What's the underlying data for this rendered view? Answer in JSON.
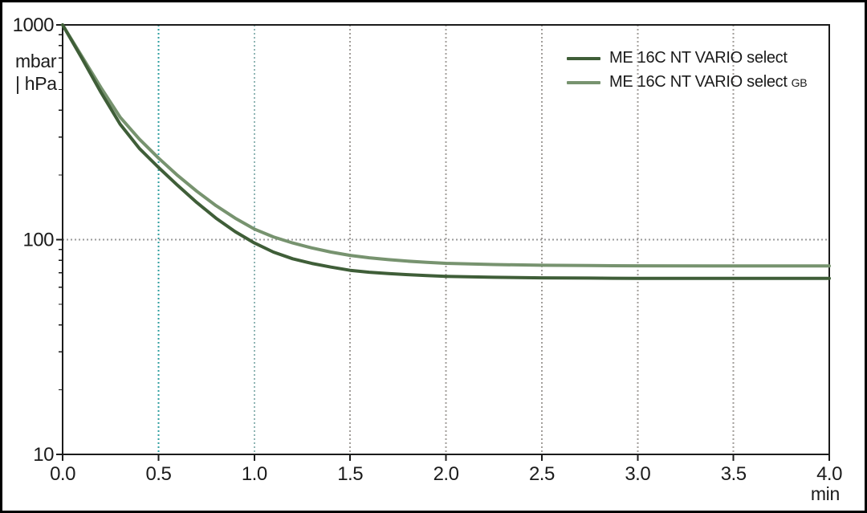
{
  "colors": {
    "background": "#ffffff",
    "border": "#000000",
    "axis": "#1b1b1b",
    "text": "#1b1b1b",
    "series_dark_green": "#3f5e38",
    "series_light_green": "#77936f",
    "grid_teal_primary": "#2f9fa0",
    "grid_teal_secondary": "#8fb5b4",
    "grid_gray": "#a29e9a",
    "grid_horizontal_gray": "#9a9a9a"
  },
  "chart_data": {
    "type": "line",
    "title": "",
    "y_unit_label_line1": "mbar",
    "y_unit_label_line2": "| hPa",
    "x_unit_label": "min",
    "y_scale": "log",
    "xlim": [
      0,
      4
    ],
    "ylim": [
      10,
      1000
    ],
    "x_ticks": [
      0,
      0.5,
      1,
      1.5,
      2,
      2.5,
      3,
      3.5,
      4
    ],
    "x_tick_labels": [
      "0.0",
      "0.5",
      "1.0",
      "1.5",
      "2.0",
      "2.5",
      "3.0",
      "3.5",
      "4.0"
    ],
    "y_ticks": [
      1000,
      100,
      10
    ],
    "y_tick_labels": [
      "1000",
      "100",
      "10"
    ],
    "y_minor_ticks": [
      900,
      800,
      700,
      600,
      500,
      400,
      300,
      200,
      90,
      80,
      70,
      60,
      50,
      40,
      30,
      20
    ],
    "grid": {
      "style": "dotted",
      "vertical": [
        {
          "x": 0.5,
          "color": "#2f9fa0"
        },
        {
          "x": 1.0,
          "color": "#8fb5b4"
        },
        {
          "x": 1.5,
          "color": "#a29e9a"
        },
        {
          "x": 2.0,
          "color": "#a29e9a"
        },
        {
          "x": 2.5,
          "color": "#a29e9a"
        },
        {
          "x": 3.0,
          "color": "#a29e9a"
        },
        {
          "x": 3.5,
          "color": "#a29e9a"
        }
      ],
      "horizontal": [
        {
          "y": 100,
          "color": "#9a9a9a"
        }
      ]
    },
    "legend_position": "top-right",
    "legend": {
      "entries": [
        {
          "label": "ME 16C NT VARIO select",
          "suffix": "",
          "color": "#3f5e38"
        },
        {
          "label": "ME 16C NT VARIO select",
          "suffix": "GB",
          "color": "#77936f"
        }
      ]
    },
    "series": [
      {
        "name": "ME 16C NT VARIO select",
        "color": "#3f5e38",
        "ultimate_pressure_mbar": 66,
        "points": [
          [
            0,
            1000
          ],
          [
            0.1,
            700
          ],
          [
            0.2,
            485
          ],
          [
            0.3,
            345
          ],
          [
            0.4,
            266
          ],
          [
            0.5,
            217
          ],
          [
            0.6,
            179
          ],
          [
            0.7,
            149
          ],
          [
            0.8,
            126
          ],
          [
            0.9,
            109
          ],
          [
            1.0,
            96.5
          ],
          [
            1.1,
            87.5
          ],
          [
            1.2,
            81.5
          ],
          [
            1.3,
            77.5
          ],
          [
            1.4,
            74.5
          ],
          [
            1.5,
            72
          ],
          [
            1.6,
            70.5
          ],
          [
            1.7,
            69.5
          ],
          [
            1.8,
            68.7
          ],
          [
            1.9,
            68
          ],
          [
            2.0,
            67.5
          ],
          [
            2.25,
            66.8
          ],
          [
            2.5,
            66.4
          ],
          [
            2.75,
            66.2
          ],
          [
            3.0,
            66
          ],
          [
            3.5,
            66
          ],
          [
            4.0,
            66
          ]
        ]
      },
      {
        "name": "ME 16C NT VARIO select GB",
        "color": "#77936f",
        "ultimate_pressure_mbar": 75.4,
        "points": [
          [
            0,
            1000
          ],
          [
            0.1,
            715
          ],
          [
            0.2,
            510
          ],
          [
            0.3,
            372
          ],
          [
            0.4,
            294
          ],
          [
            0.5,
            240
          ],
          [
            0.6,
            199
          ],
          [
            0.7,
            168
          ],
          [
            0.8,
            144
          ],
          [
            0.9,
            126
          ],
          [
            1.0,
            112
          ],
          [
            1.1,
            103
          ],
          [
            1.2,
            96.5
          ],
          [
            1.3,
            91.5
          ],
          [
            1.4,
            87.5
          ],
          [
            1.5,
            84.5
          ],
          [
            1.6,
            82.3
          ],
          [
            1.7,
            80.7
          ],
          [
            1.8,
            79.4
          ],
          [
            1.9,
            78.4
          ],
          [
            2.0,
            77.6
          ],
          [
            2.25,
            76.6
          ],
          [
            2.5,
            76
          ],
          [
            2.75,
            75.7
          ],
          [
            3.0,
            75.5
          ],
          [
            3.5,
            75.4
          ],
          [
            4.0,
            75.4
          ]
        ]
      }
    ]
  }
}
